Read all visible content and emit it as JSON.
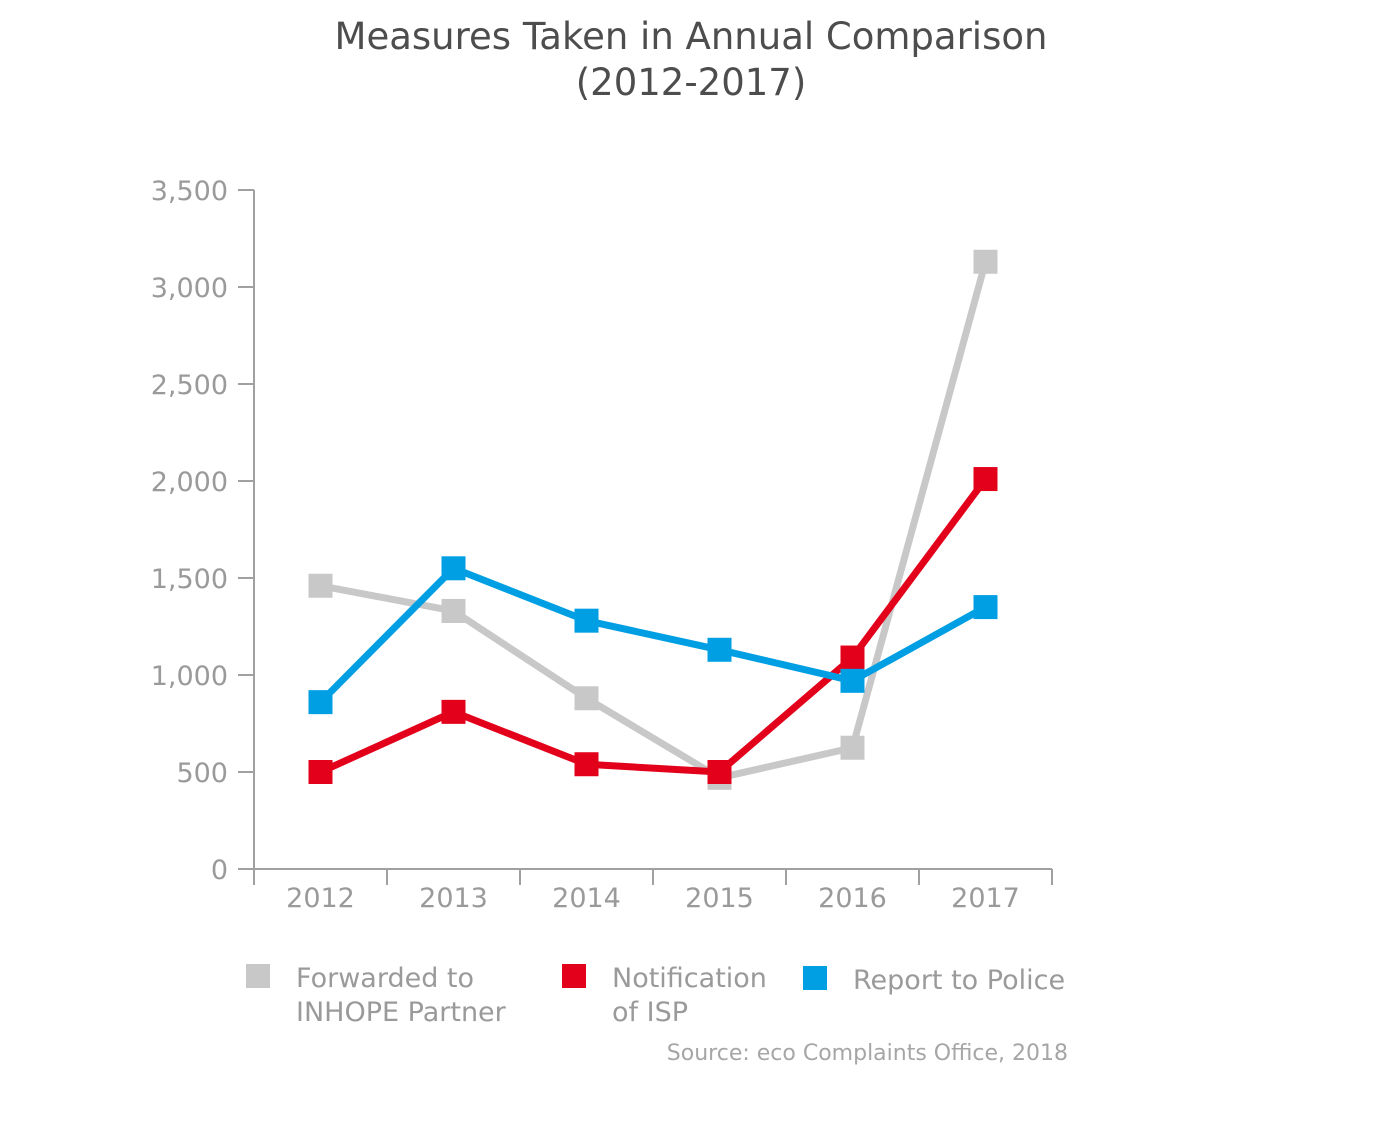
{
  "title_line1": "Measures Taken in Annual Comparison",
  "title_line2": "(2012-2017)",
  "source": "Source: eco Complaints Office, 2018",
  "chart_data": {
    "type": "line",
    "title": "Measures Taken in Annual Comparison (2012-2017)",
    "categories": [
      "2012",
      "2013",
      "2014",
      "2015",
      "2016",
      "2017"
    ],
    "ylim": [
      0,
      3500
    ],
    "yticks": [
      0,
      500,
      1000,
      1500,
      2000,
      2500,
      3000,
      3500
    ],
    "ytick_labels": [
      "0",
      "500",
      "1,000",
      "1,500",
      "2,000",
      "2,500",
      "3,000",
      "3,500"
    ],
    "grid": false,
    "legend_position": "bottom",
    "series": [
      {
        "name": "Forwarded to INHOPE Partner",
        "legend_lines": [
          "Forwarded to",
          "INHOPE Partner"
        ],
        "color": "#c8c8c8",
        "values": [
          1460,
          1330,
          880,
          470,
          625,
          3130
        ]
      },
      {
        "name": "Notification of ISP",
        "legend_lines": [
          "Notification",
          "of ISP"
        ],
        "color": "#e3001b",
        "values": [
          500,
          810,
          540,
          500,
          1090,
          2010
        ]
      },
      {
        "name": "Report to Police",
        "legend_lines": [
          "Report to Police"
        ],
        "color": "#009fe3",
        "values": [
          860,
          1550,
          1280,
          1130,
          970,
          1350
        ]
      }
    ]
  }
}
